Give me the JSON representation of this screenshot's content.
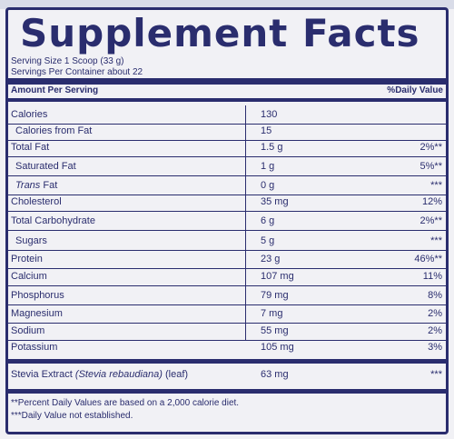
{
  "panel": {
    "title": "Supplement Facts",
    "serving_size": "Serving Size 1 Scoop (33 g)",
    "servings_per_container": "Servings Per Container about 22",
    "header_amount": "Amount Per Serving",
    "header_dv": "%Daily Value"
  },
  "rows": [
    {
      "name": "Calories",
      "amount": "130",
      "dv": ""
    },
    {
      "name": "Calories from Fat",
      "amount": "15",
      "dv": ""
    },
    {
      "name": "Total Fat",
      "amount": "1.5 g",
      "dv": "2%**"
    },
    {
      "name": "Saturated Fat",
      "amount": "1 g",
      "dv": "5%**"
    },
    {
      "name": "Trans",
      "name_suffix": " Fat",
      "amount": "0 g",
      "dv": "***"
    },
    {
      "name": "Cholesterol",
      "amount": "35 mg",
      "dv": "12%"
    },
    {
      "name": "Total Carbohydrate",
      "amount": "6 g",
      "dv": "2%**"
    },
    {
      "name": "Sugars",
      "amount": "5 g",
      "dv": "***"
    },
    {
      "name": "Protein",
      "amount": "23 g",
      "dv": "46%**"
    },
    {
      "name": "Calcium",
      "amount": "107 mg",
      "dv": "11%"
    },
    {
      "name": "Phosphorus",
      "amount": "79 mg",
      "dv": "8%"
    },
    {
      "name": "Magnesium",
      "amount": "7 mg",
      "dv": "2%"
    },
    {
      "name": "Sodium",
      "amount": "55 mg",
      "dv": "2%"
    },
    {
      "name": "Potassium",
      "amount": "105 mg",
      "dv": "3%"
    },
    {
      "name": "Stevia Extract ",
      "name_italic": "(Stevia rebaudiana)",
      "name_suffix": " (leaf)",
      "amount": "63 mg",
      "dv": "***"
    }
  ],
  "footnotes": {
    "note1": "**Percent Daily Values are based on a 2,000 calorie diet.",
    "note2": "***Daily Value not established."
  },
  "colors": {
    "ink": "#2a2d6e",
    "paper": "#f1f1f5"
  }
}
